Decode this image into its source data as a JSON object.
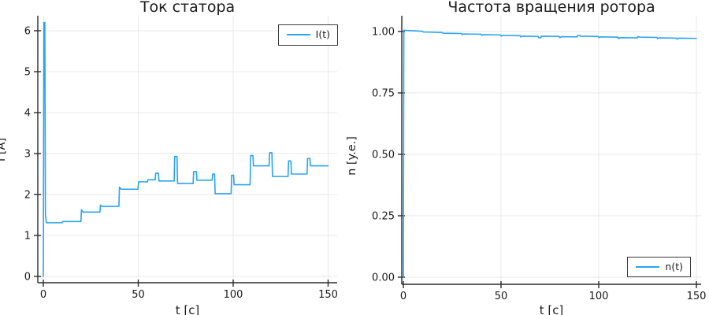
{
  "colors": {
    "series_line": "#2aa3ee",
    "grid": "#e9e9e9",
    "axis": "#2b2b2b",
    "text": "#1a1a1a",
    "legend_border": "#3a3a3a",
    "background": "#ffffff"
  },
  "chart_data": [
    {
      "type": "line",
      "title": "Ток статора",
      "xlabel": "t [c]",
      "ylabel": "I [A]",
      "legend_label": "I(t)",
      "legend_position": "top-right",
      "grid": true,
      "xlim": [
        -2.9,
        152.3
      ],
      "ylim": [
        -0.15,
        6.37
      ],
      "xticks": [
        0,
        50,
        100,
        150
      ],
      "yticks": [
        0,
        1,
        2,
        3,
        4,
        5,
        6
      ],
      "xtick_labels": [
        "0",
        "50",
        "100",
        "150"
      ],
      "ytick_labels": [
        "0",
        "1",
        "2",
        "3",
        "4",
        "5",
        "6"
      ],
      "series": [
        {
          "name": "I(t)",
          "points": [
            [
              0,
              0
            ],
            [
              0.3,
              6.2
            ],
            [
              0.8,
              6.2
            ],
            [
              1.1,
              1.5
            ],
            [
              1.6,
              1.31
            ],
            [
              9.8,
              1.31
            ],
            [
              10.2,
              1.34
            ],
            [
              19.8,
              1.34
            ],
            [
              20.1,
              1.63
            ],
            [
              20.9,
              1.57
            ],
            [
              29.8,
              1.57
            ],
            [
              30.1,
              1.74
            ],
            [
              30.9,
              1.71
            ],
            [
              39.8,
              1.71
            ],
            [
              40.1,
              2.18
            ],
            [
              40.9,
              2.13
            ],
            [
              49.8,
              2.13
            ],
            [
              50.2,
              2.31
            ],
            [
              54.8,
              2.31
            ],
            [
              55.1,
              2.36
            ],
            [
              58.9,
              2.36
            ],
            [
              59.2,
              2.52
            ],
            [
              60.6,
              2.52
            ],
            [
              60.9,
              2.33
            ],
            [
              68.9,
              2.33
            ],
            [
              69.2,
              2.93
            ],
            [
              70.4,
              2.93
            ],
            [
              70.7,
              2.27
            ],
            [
              78.9,
              2.27
            ],
            [
              79.2,
              2.56
            ],
            [
              80.6,
              2.56
            ],
            [
              80.9,
              2.35
            ],
            [
              88.9,
              2.35
            ],
            [
              89.2,
              2.5
            ],
            [
              90.2,
              2.5
            ],
            [
              90.5,
              2.02
            ],
            [
              98.9,
              2.02
            ],
            [
              99.2,
              2.47
            ],
            [
              100.2,
              2.47
            ],
            [
              100.5,
              2.24
            ],
            [
              108.9,
              2.24
            ],
            [
              109.2,
              2.95
            ],
            [
              110.4,
              2.95
            ],
            [
              110.7,
              2.7
            ],
            [
              118.9,
              2.7
            ],
            [
              119.2,
              3.02
            ],
            [
              120.4,
              3.02
            ],
            [
              120.7,
              2.44
            ],
            [
              128.9,
              2.44
            ],
            [
              129.2,
              2.82
            ],
            [
              130.4,
              2.82
            ],
            [
              130.7,
              2.5
            ],
            [
              138.9,
              2.5
            ],
            [
              139.2,
              2.88
            ],
            [
              140.4,
              2.88
            ],
            [
              140.7,
              2.7
            ],
            [
              150,
              2.7
            ]
          ]
        }
      ]
    },
    {
      "type": "line",
      "title": "Частота вращения ротора",
      "xlabel": "t [c]",
      "ylabel": "n [y.e.]",
      "legend_label": "n(t)",
      "legend_position": "bottom-right",
      "grid": true,
      "xlim": [
        -0.8,
        152.4
      ],
      "ylim": [
        -0.03,
        1.065
      ],
      "xticks": [
        0,
        50,
        100,
        150
      ],
      "yticks": [
        0,
        0.25,
        0.5,
        0.75,
        1
      ],
      "xtick_labels": [
        "0",
        "50",
        "100",
        "150"
      ],
      "ytick_labels": [
        "0.00",
        "0.25",
        "0.50",
        "0.75",
        "1.00"
      ],
      "series": [
        {
          "name": "n(t)",
          "points": [
            [
              0,
              0
            ],
            [
              0.25,
              1.005
            ],
            [
              0.7,
              1.005
            ],
            [
              9.8,
              1.001
            ],
            [
              10.2,
              0.998
            ],
            [
              19.8,
              0.996
            ],
            [
              20.2,
              0.993
            ],
            [
              29.8,
              0.992
            ],
            [
              30.1,
              0.987
            ],
            [
              30.9,
              0.99
            ],
            [
              39.8,
              0.989
            ],
            [
              40.1,
              0.985
            ],
            [
              40.9,
              0.987
            ],
            [
              49.8,
              0.986
            ],
            [
              50.1,
              0.981
            ],
            [
              50.9,
              0.984
            ],
            [
              59.8,
              0.983
            ],
            [
              60.1,
              0.978
            ],
            [
              60.9,
              0.981
            ],
            [
              69.0,
              0.98
            ],
            [
              69.3,
              0.975
            ],
            [
              70.4,
              0.975
            ],
            [
              70.7,
              0.981
            ],
            [
              79.8,
              0.98
            ],
            [
              80.1,
              0.975
            ],
            [
              80.9,
              0.979
            ],
            [
              89.0,
              0.978
            ],
            [
              89.3,
              0.984
            ],
            [
              90.3,
              0.984
            ],
            [
              90.6,
              0.981
            ],
            [
              99.8,
              0.98
            ],
            [
              100.1,
              0.975
            ],
            [
              100.9,
              0.978
            ],
            [
              109.8,
              0.977
            ],
            [
              110.1,
              0.971
            ],
            [
              110.9,
              0.975
            ],
            [
              119.8,
              0.974
            ],
            [
              120.1,
              0.979
            ],
            [
              120.9,
              0.977
            ],
            [
              129.8,
              0.976
            ],
            [
              130.1,
              0.971
            ],
            [
              130.9,
              0.974
            ],
            [
              139.8,
              0.973
            ],
            [
              140.1,
              0.969
            ],
            [
              140.9,
              0.973
            ],
            [
              150,
              0.972
            ]
          ]
        }
      ]
    }
  ]
}
